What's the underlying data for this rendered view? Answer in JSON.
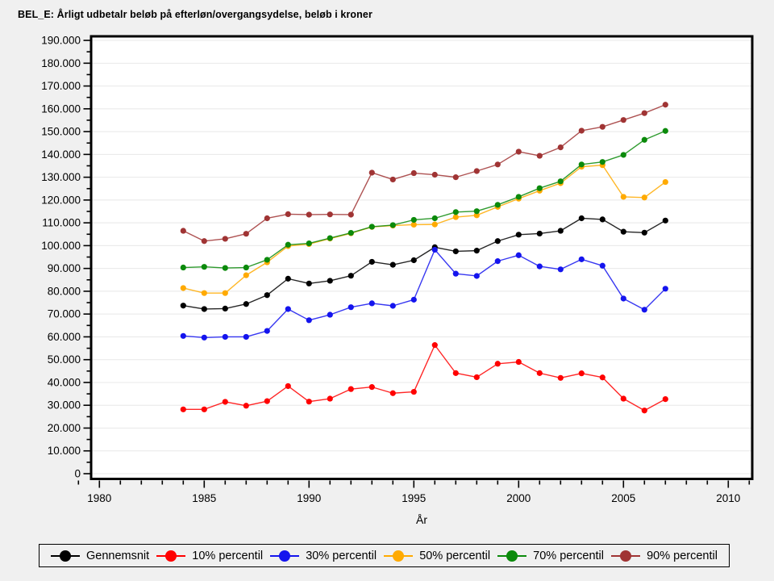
{
  "page": {
    "title": "BEL_E: Årligt udbetalr beløb på efterløn/overgangsydelse, beløb i kroner"
  },
  "chart_data": {
    "type": "line",
    "title": "BEL_E: Årligt udbetalr beløb på efterløn/overgangsydelse, beløb i kroner",
    "xlabel": "År",
    "ylabel": "",
    "x": [
      1984,
      1985,
      1986,
      1987,
      1988,
      1989,
      1990,
      1991,
      1992,
      1993,
      1994,
      1995,
      1996,
      1997,
      1998,
      1999,
      2000,
      2001,
      2002,
      2003,
      2004,
      2005,
      2006,
      2007
    ],
    "xlim": [
      1979.6,
      2011.5
    ],
    "ylim": [
      0,
      190000
    ],
    "y_major_step": 10000,
    "y_minor_step": 5000,
    "x_major_ticks": [
      1980,
      1985,
      1990,
      1995,
      2000,
      2005,
      2010
    ],
    "x_minor_step": 1,
    "grid": "horizontal",
    "legend_position": "bottom",
    "y_tick_label_format": "thousands-dot",
    "series": [
      {
        "name": "Gennemsnit",
        "color": "#000000",
        "values": [
          73700,
          72200,
          72400,
          74400,
          78300,
          85500,
          83400,
          84600,
          86800,
          92900,
          91600,
          93600,
          99300,
          97500,
          97800,
          102000,
          104800,
          105300,
          106500,
          112000,
          111500,
          106100,
          105700,
          111000
        ]
      },
      {
        "name": "10% percentil",
        "color": "#FF0000",
        "values": [
          28200,
          28200,
          31500,
          29800,
          31800,
          38400,
          31600,
          32900,
          37100,
          38000,
          35300,
          35900,
          56400,
          44100,
          42300,
          48200,
          49000,
          44100,
          42000,
          44000,
          42200,
          32900,
          27700,
          32700
        ]
      },
      {
        "name": "30% percentil",
        "color": "#1414EE",
        "values": [
          60400,
          59700,
          60000,
          60000,
          62600,
          72200,
          67300,
          69700,
          73000,
          74700,
          73600,
          76300,
          98200,
          87700,
          86700,
          93200,
          95800,
          90900,
          89600,
          94000,
          91200,
          76800,
          71900,
          81100
        ]
      },
      {
        "name": "50% percentil",
        "color": "#FFAA00",
        "values": [
          81400,
          79200,
          79200,
          87000,
          92700,
          99800,
          100700,
          103100,
          105400,
          108200,
          108800,
          109200,
          109300,
          112500,
          113300,
          117000,
          120600,
          124100,
          127400,
          134600,
          135300,
          121400,
          121100,
          127900
        ]
      },
      {
        "name": "70% percentil",
        "color": "#0B8A0B",
        "values": [
          90400,
          90700,
          90200,
          90400,
          93800,
          100400,
          101000,
          103300,
          105600,
          108300,
          109000,
          111300,
          112000,
          114700,
          115100,
          117900,
          121400,
          125200,
          128200,
          135600,
          136700,
          139800,
          146400,
          150300
        ]
      },
      {
        "name": "90% percentil",
        "color": "#A03434",
        "values": [
          106500,
          102000,
          103000,
          105200,
          112000,
          113800,
          113600,
          113700,
          113600,
          132000,
          129000,
          131800,
          131100,
          130000,
          132700,
          135600,
          141200,
          139400,
          143100,
          150400,
          152100,
          155100,
          158100,
          161800
        ]
      }
    ]
  }
}
